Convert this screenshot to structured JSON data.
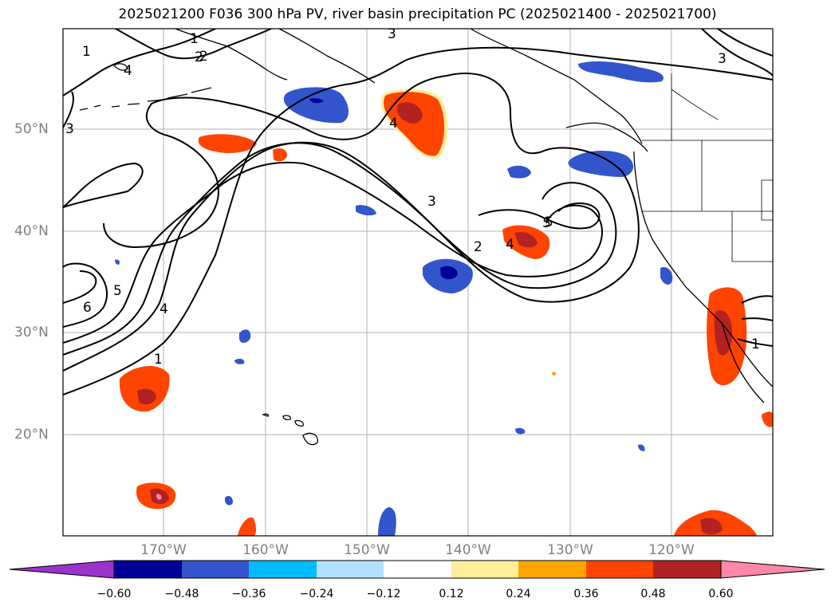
{
  "title": "2025021200 F036 300 hPa PV, river basin precipitation PC (2025021400 - 2025021700)",
  "lat_labels": [
    "50°N",
    "40°N",
    "30°N",
    "20°N"
  ],
  "lon_labels": [
    "170°W",
    "160°W",
    "150°W",
    "140°W",
    "130°W",
    "120°W"
  ],
  "contour_labels": [
    "1",
    "2",
    "3",
    "4",
    "5",
    "6",
    "1",
    "2",
    "3",
    "4",
    "5",
    "1",
    "2",
    "3",
    "4",
    "5",
    "4",
    "3",
    "1"
  ],
  "colorbar": {
    "ticks": [
      "−0.60",
      "−0.48",
      "−0.36",
      "−0.24",
      "−0.12",
      "0.12",
      "0.24",
      "0.36",
      "0.48",
      "0.60"
    ],
    "colors": [
      "#9933cc",
      "#000099",
      "#3355cc",
      "#00bbff",
      "#b3e0ff",
      "#ffffff",
      "#ffee99",
      "#ffa500",
      "#ff4400",
      "#b22222",
      "#ff88aa",
      "#ff88aa"
    ]
  },
  "colors": {
    "contour": "#000000",
    "coast": "#000000",
    "grid": "#b0b0b0"
  }
}
